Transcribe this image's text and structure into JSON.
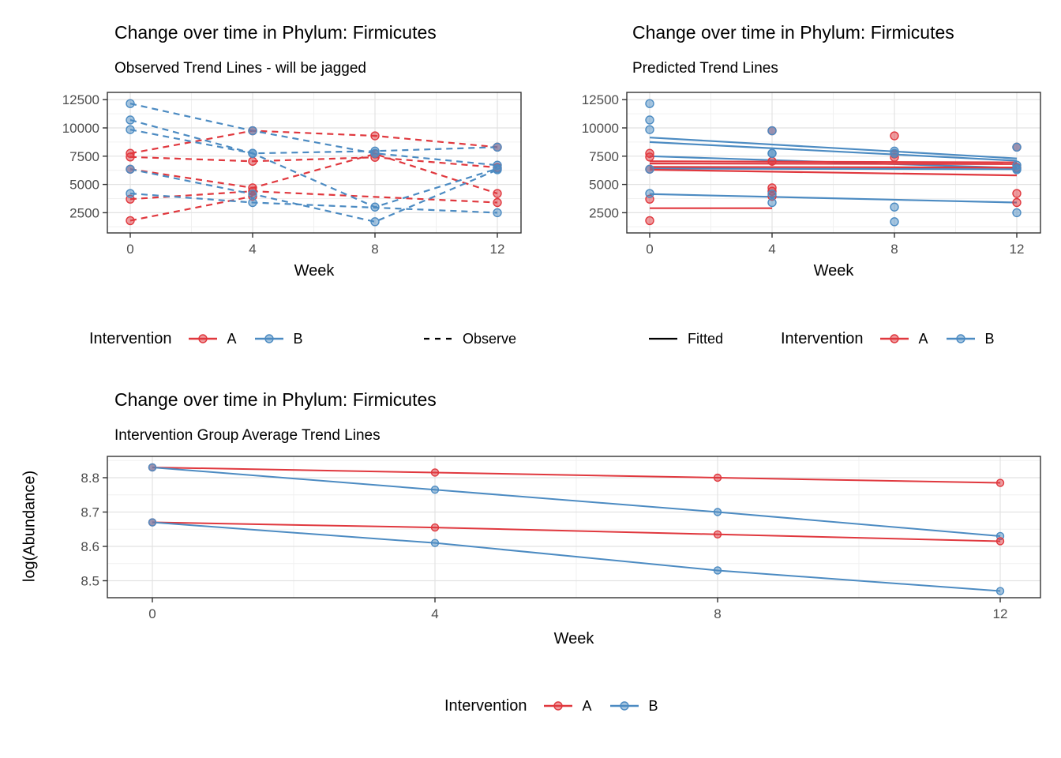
{
  "colors": {
    "a": "#E0383E",
    "b": "#4C8BC2",
    "grid_major": "#E2E2E2",
    "grid_minor": "#F0F0F0",
    "panel_border": "#333333",
    "tick_mark": "#333333",
    "tick_text": "#4D4D4D",
    "legend_line": "#000000"
  },
  "chart_data": [
    {
      "id": "c1",
      "type": "line",
      "title": "Change over time in Phylum: Firmicutes",
      "subtitle": "Observed Trend Lines - will be jagged",
      "xlabel": "Week",
      "ylabel": "",
      "x_ticks": [
        0,
        4,
        8,
        12
      ],
      "y_ticks": [
        2500,
        5000,
        7500,
        10000,
        12500
      ],
      "x_minor": [
        2,
        6,
        10
      ],
      "y_minor": [
        1250,
        3750,
        6250,
        8750,
        11250
      ],
      "xlim": [
        -0.75,
        12.8
      ],
      "ylim": [
        700,
        13150
      ],
      "grid": true,
      "series": [
        {
          "group": "A",
          "style": "dashed-markers",
          "points": [
            [
              0,
              7750
            ],
            [
              4,
              9750
            ],
            [
              8,
              9300
            ],
            [
              12,
              8300
            ]
          ]
        },
        {
          "group": "A",
          "style": "dashed-markers",
          "points": [
            [
              0,
              7430
            ],
            [
              4,
              7050
            ],
            [
              8,
              7400
            ],
            [
              12,
              6500
            ]
          ]
        },
        {
          "group": "A",
          "style": "dashed-markers",
          "points": [
            [
              0,
              6350
            ],
            [
              4,
              4700
            ],
            [
              8,
              7700
            ],
            [
              12,
              4200
            ]
          ]
        },
        {
          "group": "A",
          "style": "dashed-markers",
          "points": [
            [
              0,
              3700
            ],
            [
              4,
              4400
            ],
            [
              12,
              3400
            ]
          ]
        },
        {
          "group": "A",
          "style": "dashed-markers",
          "points": [
            [
              0,
              1800
            ],
            [
              4,
              3950
            ]
          ]
        },
        {
          "group": "B",
          "style": "dashed-markers",
          "points": [
            [
              0,
              12150
            ],
            [
              4,
              9750
            ],
            [
              8,
              7750
            ],
            [
              12,
              6700
            ]
          ]
        },
        {
          "group": "B",
          "style": "dashed-markers",
          "points": [
            [
              0,
              10700
            ],
            [
              4,
              7750
            ],
            [
              8,
              7950
            ],
            [
              12,
              8300
            ]
          ]
        },
        {
          "group": "B",
          "style": "dashed-markers",
          "points": [
            [
              0,
              9850
            ],
            [
              4,
              7750
            ],
            [
              8,
              3000
            ],
            [
              12,
              6400
            ]
          ]
        },
        {
          "group": "B",
          "style": "dashed-markers",
          "points": [
            [
              0,
              6350
            ],
            [
              4,
              4150
            ],
            [
              8,
              1700
            ],
            [
              12,
              6300
            ]
          ]
        },
        {
          "group": "B",
          "style": "dashed-markers",
          "points": [
            [
              0,
              4200
            ],
            [
              4,
              3400
            ],
            [
              12,
              2500
            ]
          ]
        }
      ]
    },
    {
      "id": "c2",
      "type": "line",
      "title": "Change over time in Phylum: Firmicutes",
      "subtitle": "Predicted Trend Lines",
      "xlabel": "Week",
      "ylabel": "",
      "x_ticks": [
        0,
        4,
        8,
        12
      ],
      "y_ticks": [
        2500,
        5000,
        7500,
        10000,
        12500
      ],
      "x_minor": [
        2,
        6,
        10
      ],
      "y_minor": [
        1250,
        3750,
        6250,
        8750,
        11250
      ],
      "xlim": [
        -0.75,
        12.8
      ],
      "ylim": [
        700,
        13150
      ],
      "grid": true,
      "series": [
        {
          "group": "B",
          "style": "line",
          "points": [
            [
              0,
              9150
            ],
            [
              12,
              7300
            ]
          ]
        },
        {
          "group": "B",
          "style": "line",
          "points": [
            [
              0,
              8750
            ],
            [
              12,
              7100
            ]
          ]
        },
        {
          "group": "B",
          "style": "line",
          "points": [
            [
              0,
              7500
            ],
            [
              12,
              6450
            ]
          ]
        },
        {
          "group": "B",
          "style": "line",
          "points": [
            [
              0,
              6400
            ],
            [
              12,
              6350
            ]
          ]
        },
        {
          "group": "B",
          "style": "line",
          "points": [
            [
              0,
              4150
            ],
            [
              12,
              3400
            ]
          ]
        },
        {
          "group": "A",
          "style": "line",
          "points": [
            [
              0,
              7050
            ],
            [
              12,
              6950
            ]
          ]
        },
        {
          "group": "A",
          "style": "line",
          "points": [
            [
              0,
              6850
            ],
            [
              12,
              6800
            ]
          ]
        },
        {
          "group": "A",
          "style": "line",
          "points": [
            [
              0,
              6550
            ],
            [
              12,
              6500
            ]
          ]
        },
        {
          "group": "A",
          "style": "line",
          "points": [
            [
              0,
              6300
            ],
            [
              12,
              5800
            ]
          ]
        },
        {
          "group": "A",
          "style": "line",
          "points": [
            [
              0,
              2900
            ],
            [
              4,
              2900
            ]
          ]
        },
        {
          "group": "A",
          "style": "markers",
          "points": [
            [
              0,
              7750
            ],
            [
              4,
              9750
            ],
            [
              8,
              9300
            ],
            [
              12,
              8300
            ],
            [
              0,
              7430
            ],
            [
              4,
              7050
            ],
            [
              8,
              7400
            ],
            [
              12,
              6500
            ],
            [
              0,
              6350
            ],
            [
              4,
              4700
            ],
            [
              8,
              7700
            ],
            [
              12,
              4200
            ],
            [
              0,
              3700
            ],
            [
              4,
              4400
            ],
            [
              12,
              3400
            ],
            [
              0,
              1800
            ],
            [
              4,
              3950
            ]
          ]
        },
        {
          "group": "B",
          "style": "markers",
          "points": [
            [
              0,
              12150
            ],
            [
              4,
              9750
            ],
            [
              8,
              7750
            ],
            [
              12,
              6700
            ],
            [
              0,
              10700
            ],
            [
              4,
              7750
            ],
            [
              8,
              7950
            ],
            [
              12,
              8300
            ],
            [
              0,
              9850
            ],
            [
              4,
              7750
            ],
            [
              8,
              3000
            ],
            [
              12,
              6400
            ],
            [
              0,
              6350
            ],
            [
              4,
              4150
            ],
            [
              8,
              1700
            ],
            [
              12,
              6300
            ],
            [
              0,
              4200
            ],
            [
              4,
              3400
            ],
            [
              12,
              2500
            ]
          ]
        }
      ]
    },
    {
      "id": "c3",
      "type": "line",
      "title": "Change over time in Phylum: Firmicutes",
      "subtitle": "Intervention Group Average Trend Lines",
      "xlabel": "Week",
      "ylabel": "log(Abundance)",
      "x_ticks": [
        0,
        4,
        8,
        12
      ],
      "y_ticks": [
        8.5,
        8.6,
        8.7,
        8.8
      ],
      "x_minor": [
        2,
        6,
        10
      ],
      "y_minor": [
        8.55,
        8.65,
        8.75,
        8.85
      ],
      "xlim": [
        -0.64,
        12.6
      ],
      "ylim": [
        8.45,
        8.86
      ],
      "grid": true,
      "series": [
        {
          "group": "A",
          "style": "line-markers",
          "points": [
            [
              0,
              8.83
            ],
            [
              4,
              8.815
            ],
            [
              8,
              8.8
            ],
            [
              12,
              8.785
            ]
          ]
        },
        {
          "group": "B",
          "style": "line-markers",
          "points": [
            [
              0,
              8.83
            ],
            [
              4,
              8.765
            ],
            [
              8,
              8.7
            ],
            [
              12,
              8.63
            ]
          ]
        },
        {
          "group": "A",
          "style": "line-markers",
          "points": [
            [
              0,
              8.67
            ],
            [
              4,
              8.655
            ],
            [
              8,
              8.635
            ],
            [
              12,
              8.615
            ]
          ]
        },
        {
          "group": "B",
          "style": "line-markers",
          "points": [
            [
              0,
              8.67
            ],
            [
              4,
              8.61
            ],
            [
              8,
              8.53
            ],
            [
              12,
              8.47
            ]
          ]
        }
      ]
    }
  ],
  "legends": {
    "observed": {
      "title": "Intervention",
      "item_a": "A",
      "item_b": "B",
      "linetype_label": "Observe"
    },
    "predicted": {
      "fitted_label": "Fitted",
      "title": "Intervention",
      "item_a": "A",
      "item_b": "B"
    },
    "average": {
      "title": "Intervention",
      "item_a": "A",
      "item_b": "B"
    }
  }
}
